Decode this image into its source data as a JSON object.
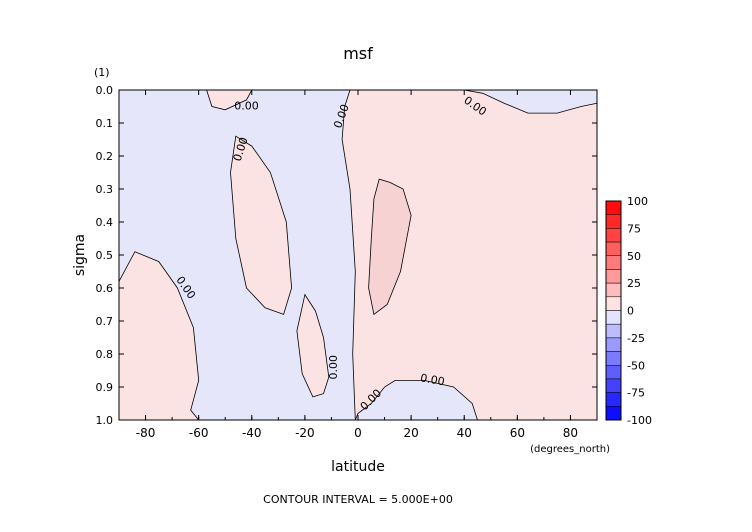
{
  "chart_data": {
    "type": "heatmap",
    "title": "msf",
    "units_label": "(1)",
    "xlabel": "latitude",
    "xunits": "(degrees_north)",
    "ylabel": "sigma",
    "xlim": [
      -90,
      90
    ],
    "ylim": [
      1.0,
      0.0
    ],
    "xticks": [
      -80,
      -60,
      -40,
      -20,
      0,
      20,
      40,
      60,
      80
    ],
    "xtick_labels": [
      "-80",
      "-60",
      "-40",
      "-20",
      "0",
      "20",
      "40",
      "60",
      "80"
    ],
    "yticks": [
      0.0,
      0.1,
      0.2,
      0.3,
      0.4,
      0.5,
      0.6,
      0.7,
      0.8,
      0.9,
      1.0
    ],
    "ytick_labels": [
      "0.0",
      "0.1",
      "0.2",
      "0.3",
      "0.4",
      "0.5",
      "0.6",
      "0.7",
      "0.8",
      "0.9",
      "1.0"
    ],
    "contour_interval_text": "CONTOUR INTERVAL = 5.000E+00",
    "contour_label": "0.00",
    "background_color": "#e6e6fa",
    "positive_color": "#fbe3e3",
    "center_color": "#f7d2d2",
    "colorbar": {
      "min": -100,
      "max": 100,
      "step": 12.5,
      "labels": [
        "100",
        "75",
        "50",
        "25",
        "0",
        "-25",
        "-50",
        "-75",
        "-100"
      ],
      "label_values": [
        100,
        75,
        50,
        25,
        0,
        -25,
        -50,
        -75,
        -100
      ],
      "positive_color": "#ff0000",
      "negative_color": "#0000ff"
    },
    "positive_regions": [
      {
        "name": "tropical",
        "points": [
          [
            -3,
            0.0
          ],
          [
            40,
            0.0
          ],
          [
            47,
            0.01
          ],
          [
            55,
            0.04
          ],
          [
            64,
            0.07
          ],
          [
            75,
            0.07
          ],
          [
            84,
            0.05
          ],
          [
            90,
            0.04
          ],
          [
            90,
            1.0
          ],
          [
            45,
            1.0
          ],
          [
            43,
            0.95
          ],
          [
            36,
            0.9
          ],
          [
            25,
            0.88
          ],
          [
            14,
            0.88
          ],
          [
            10,
            0.9
          ],
          [
            5,
            0.95
          ],
          [
            0,
            0.98
          ],
          [
            -1,
            1.0
          ],
          [
            -2,
            0.8
          ],
          [
            -1,
            0.55
          ],
          [
            -3,
            0.3
          ],
          [
            -6,
            0.15
          ],
          [
            -5,
            0.05
          ]
        ]
      },
      {
        "name": "tropical-core",
        "points": [
          [
            8,
            0.27
          ],
          [
            12,
            0.28
          ],
          [
            17,
            0.3
          ],
          [
            20,
            0.38
          ],
          [
            16,
            0.55
          ],
          [
            11,
            0.65
          ],
          [
            6,
            0.68
          ],
          [
            4,
            0.6
          ],
          [
            5,
            0.45
          ],
          [
            6,
            0.33
          ]
        ]
      },
      {
        "name": "south-mid",
        "points": [
          [
            -46,
            0.14
          ],
          [
            -40,
            0.17
          ],
          [
            -33,
            0.25
          ],
          [
            -27,
            0.4
          ],
          [
            -25,
            0.6
          ],
          [
            -28,
            0.68
          ],
          [
            -35,
            0.66
          ],
          [
            -42,
            0.6
          ],
          [
            -46,
            0.45
          ],
          [
            -48,
            0.25
          ]
        ]
      },
      {
        "name": "south-low",
        "points": [
          [
            -20,
            0.62
          ],
          [
            -16,
            0.67
          ],
          [
            -13,
            0.75
          ],
          [
            -11,
            0.87
          ],
          [
            -13,
            0.92
          ],
          [
            -17,
            0.93
          ],
          [
            -21,
            0.86
          ],
          [
            -23,
            0.73
          ]
        ]
      },
      {
        "name": "south-polar",
        "points": [
          [
            -90,
            0.58
          ],
          [
            -84,
            0.49
          ],
          [
            -75,
            0.52
          ],
          [
            -68,
            0.6
          ],
          [
            -62,
            0.72
          ],
          [
            -60,
            0.88
          ],
          [
            -63,
            0.97
          ],
          [
            -60,
            1.0
          ],
          [
            -90,
            1.0
          ]
        ]
      },
      {
        "name": "top-cell",
        "points": [
          [
            -57,
            0.0
          ],
          [
            -40,
            0.0
          ],
          [
            -42,
            0.03
          ],
          [
            -50,
            0.06
          ],
          [
            -55,
            0.05
          ]
        ]
      }
    ]
  }
}
